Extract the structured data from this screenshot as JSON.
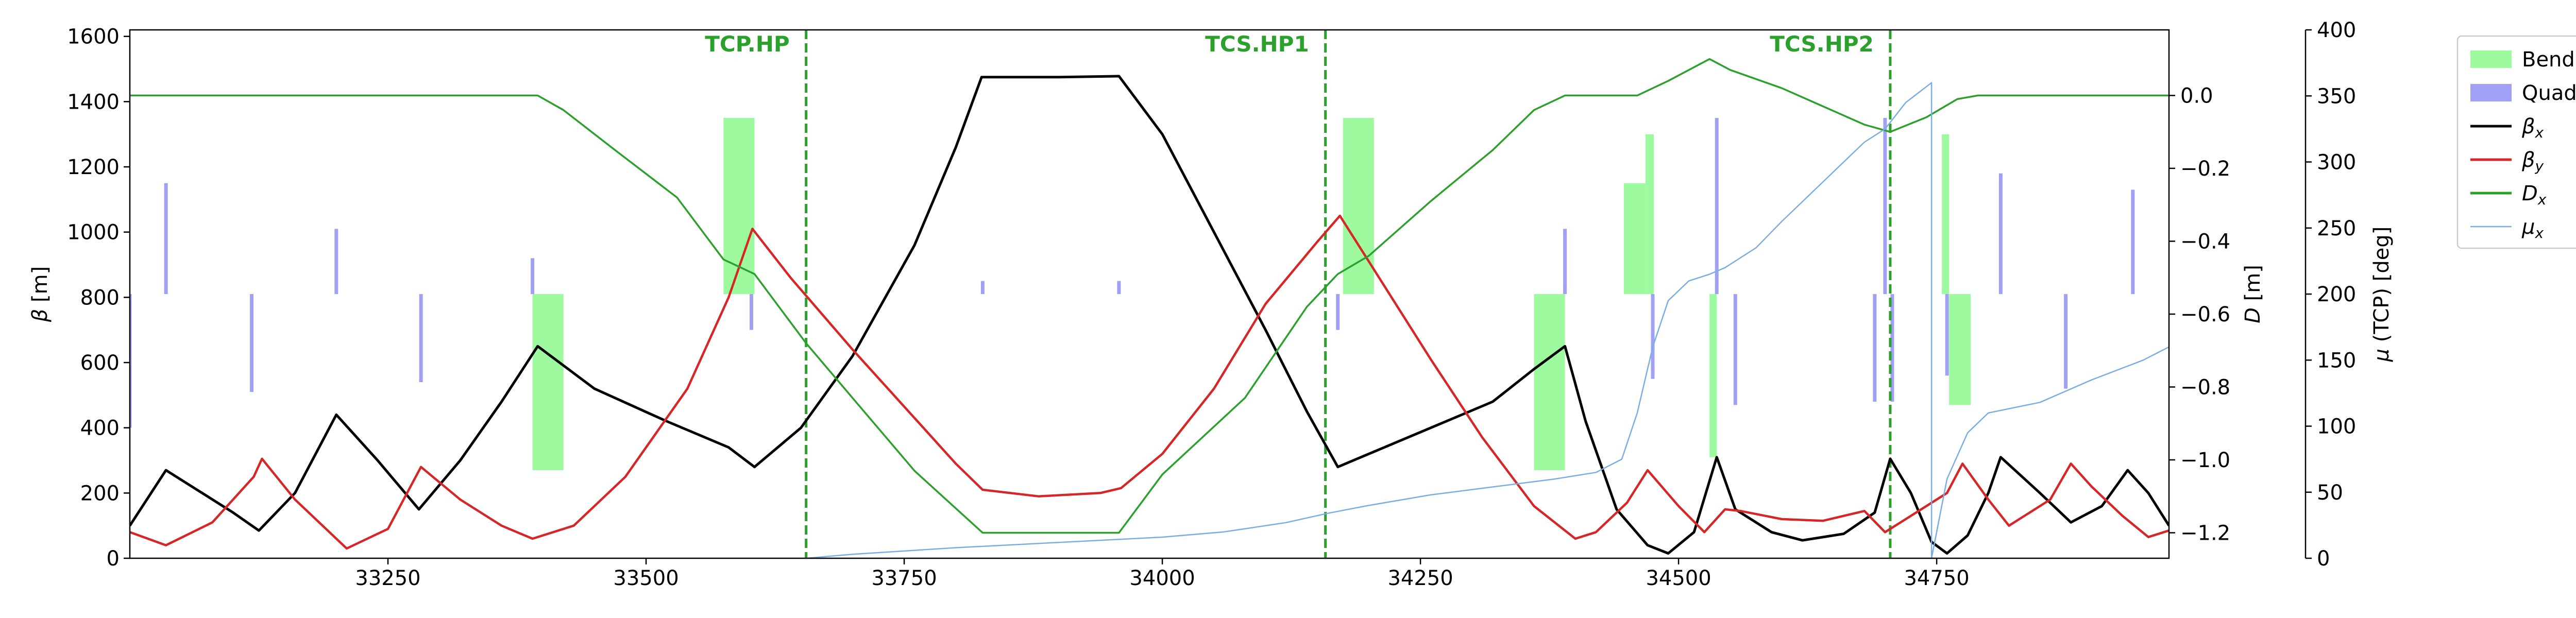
{
  "chart_data": {
    "type": "line",
    "xlim": [
      33000,
      34975
    ],
    "x_ticks": [
      "33250",
      "33500",
      "33750",
      "34000",
      "34250",
      "34500",
      "34750"
    ],
    "x_tick_values": [
      33250,
      33500,
      33750,
      34000,
      34250,
      34500,
      34750
    ],
    "left_axis": {
      "label": "β [m]",
      "lim": [
        0,
        1620
      ],
      "ticks": [
        "0",
        "200",
        "400",
        "600",
        "800",
        "1000",
        "1200",
        "1400",
        "1600"
      ],
      "tick_values": [
        0,
        200,
        400,
        600,
        800,
        1000,
        1200,
        1400,
        1600
      ]
    },
    "right_axis_1": {
      "label": "D [m]",
      "lim": [
        -1.27,
        0.18
      ],
      "ticks": [
        "−1.2",
        "−1.0",
        "−0.8",
        "−0.6",
        "−0.4",
        "−0.2",
        "0.0"
      ],
      "tick_values": [
        -1.2,
        -1.0,
        -0.8,
        -0.6,
        -0.4,
        -0.2,
        0.0
      ]
    },
    "right_axis_2": {
      "label": "μ (TCP) [deg]",
      "lim": [
        0,
        400
      ],
      "ticks": [
        "0",
        "50",
        "100",
        "150",
        "200",
        "250",
        "300",
        "350",
        "400"
      ],
      "tick_values": [
        0,
        50,
        100,
        150,
        200,
        250,
        300,
        350,
        400
      ]
    },
    "colors": {
      "beta_x": "#000000",
      "beta_y": "#d62728",
      "D_x": "#2ca02c",
      "mu_x": "#7aaee0",
      "bend": "#9efa9e",
      "quad": "#a0a0f4",
      "marker": "#2ca02c"
    },
    "legend": {
      "placement": "outside-right",
      "entries": [
        {
          "label": "Bend h",
          "kind": "patch",
          "color_key": "bend"
        },
        {
          "label": "Quad",
          "kind": "patch",
          "color_key": "quad"
        },
        {
          "label": "β",
          "sub": "x",
          "kind": "line",
          "color_key": "beta_x"
        },
        {
          "label": "β",
          "sub": "y",
          "kind": "line",
          "color_key": "beta_y"
        },
        {
          "label": "D",
          "sub": "x",
          "kind": "line",
          "color_key": "D_x"
        },
        {
          "label": "μ",
          "sub": "x",
          "kind": "line",
          "color_key": "mu_x"
        }
      ]
    },
    "markers": [
      {
        "label": "TCP.HP",
        "x": 33655
      },
      {
        "label": "TCS.HP1",
        "x": 34158
      },
      {
        "label": "TCS.HP2",
        "x": 34705
      }
    ],
    "series": [
      {
        "key": "beta_x",
        "axis": "left",
        "points": [
          [
            33000,
            100
          ],
          [
            33035,
            270
          ],
          [
            33070,
            200
          ],
          [
            33100,
            140
          ],
          [
            33125,
            85
          ],
          [
            33160,
            200
          ],
          [
            33200,
            440
          ],
          [
            33240,
            300
          ],
          [
            33280,
            150
          ],
          [
            33320,
            300
          ],
          [
            33360,
            480
          ],
          [
            33395,
            650
          ],
          [
            33450,
            520
          ],
          [
            33520,
            420
          ],
          [
            33580,
            340
          ],
          [
            33605,
            280
          ],
          [
            33650,
            400
          ],
          [
            33700,
            620
          ],
          [
            33760,
            960
          ],
          [
            33800,
            1260
          ],
          [
            33825,
            1475
          ],
          [
            33900,
            1475
          ],
          [
            33958,
            1478
          ],
          [
            34000,
            1300
          ],
          [
            34050,
            1000
          ],
          [
            34100,
            700
          ],
          [
            34140,
            450
          ],
          [
            34170,
            280
          ],
          [
            34200,
            320
          ],
          [
            34260,
            400
          ],
          [
            34320,
            480
          ],
          [
            34360,
            580
          ],
          [
            34390,
            650
          ],
          [
            34410,
            420
          ],
          [
            34440,
            150
          ],
          [
            34470,
            40
          ],
          [
            34490,
            15
          ],
          [
            34515,
            80
          ],
          [
            34537,
            310
          ],
          [
            34555,
            150
          ],
          [
            34590,
            80
          ],
          [
            34620,
            55
          ],
          [
            34660,
            75
          ],
          [
            34690,
            140
          ],
          [
            34705,
            305
          ],
          [
            34725,
            200
          ],
          [
            34745,
            50
          ],
          [
            34760,
            15
          ],
          [
            34780,
            70
          ],
          [
            34800,
            200
          ],
          [
            34812,
            310
          ],
          [
            34850,
            200
          ],
          [
            34880,
            110
          ],
          [
            34910,
            160
          ],
          [
            34935,
            270
          ],
          [
            34955,
            200
          ],
          [
            34975,
            100
          ]
        ]
      },
      {
        "key": "beta_y",
        "axis": "left",
        "points": [
          [
            33000,
            80
          ],
          [
            33035,
            40
          ],
          [
            33080,
            110
          ],
          [
            33120,
            250
          ],
          [
            33128,
            305
          ],
          [
            33160,
            180
          ],
          [
            33200,
            60
          ],
          [
            33210,
            30
          ],
          [
            33250,
            90
          ],
          [
            33282,
            280
          ],
          [
            33320,
            180
          ],
          [
            33360,
            100
          ],
          [
            33390,
            60
          ],
          [
            33430,
            100
          ],
          [
            33480,
            250
          ],
          [
            33540,
            520
          ],
          [
            33580,
            800
          ],
          [
            33603,
            1010
          ],
          [
            33640,
            860
          ],
          [
            33700,
            640
          ],
          [
            33760,
            430
          ],
          [
            33800,
            290
          ],
          [
            33826,
            210
          ],
          [
            33880,
            190
          ],
          [
            33940,
            200
          ],
          [
            33960,
            215
          ],
          [
            34000,
            320
          ],
          [
            34050,
            520
          ],
          [
            34100,
            780
          ],
          [
            34150,
            970
          ],
          [
            34172,
            1050
          ],
          [
            34210,
            860
          ],
          [
            34260,
            610
          ],
          [
            34310,
            370
          ],
          [
            34360,
            160
          ],
          [
            34400,
            60
          ],
          [
            34420,
            80
          ],
          [
            34450,
            170
          ],
          [
            34470,
            270
          ],
          [
            34500,
            160
          ],
          [
            34525,
            80
          ],
          [
            34545,
            150
          ],
          [
            34560,
            145
          ],
          [
            34600,
            120
          ],
          [
            34640,
            115
          ],
          [
            34680,
            145
          ],
          [
            34700,
            80
          ],
          [
            34725,
            130
          ],
          [
            34760,
            200
          ],
          [
            34775,
            290
          ],
          [
            34800,
            180
          ],
          [
            34820,
            100
          ],
          [
            34860,
            180
          ],
          [
            34880,
            290
          ],
          [
            34900,
            220
          ],
          [
            34930,
            130
          ],
          [
            34955,
            65
          ],
          [
            34975,
            85
          ]
        ]
      },
      {
        "key": "D_x",
        "axis": "right1",
        "points": [
          [
            33000,
            0.0
          ],
          [
            33100,
            0.0
          ],
          [
            33200,
            0.0
          ],
          [
            33300,
            0.0
          ],
          [
            33395,
            0.0
          ],
          [
            33420,
            -0.04
          ],
          [
            33470,
            -0.15
          ],
          [
            33530,
            -0.28
          ],
          [
            33575,
            -0.45
          ],
          [
            33605,
            -0.49
          ],
          [
            33655,
            -0.68
          ],
          [
            33700,
            -0.83
          ],
          [
            33760,
            -1.03
          ],
          [
            33826,
            -1.2
          ],
          [
            33958,
            -1.2
          ],
          [
            34000,
            -1.04
          ],
          [
            34080,
            -0.83
          ],
          [
            34140,
            -0.58
          ],
          [
            34170,
            -0.49
          ],
          [
            34200,
            -0.44
          ],
          [
            34260,
            -0.29
          ],
          [
            34320,
            -0.15
          ],
          [
            34360,
            -0.04
          ],
          [
            34390,
            0.0
          ],
          [
            34460,
            0.0
          ],
          [
            34490,
            0.04
          ],
          [
            34530,
            0.1
          ],
          [
            34550,
            0.07
          ],
          [
            34600,
            0.02
          ],
          [
            34680,
            -0.08
          ],
          [
            34705,
            -0.1
          ],
          [
            34740,
            -0.06
          ],
          [
            34770,
            -0.01
          ],
          [
            34790,
            0.0
          ],
          [
            34975,
            0.0
          ]
        ]
      },
      {
        "key": "mu_x",
        "axis": "right2",
        "points": [
          [
            33655,
            0
          ],
          [
            33700,
            3
          ],
          [
            33800,
            8
          ],
          [
            33900,
            12
          ],
          [
            34000,
            16
          ],
          [
            34060,
            20
          ],
          [
            34120,
            27
          ],
          [
            34160,
            34
          ],
          [
            34200,
            40
          ],
          [
            34260,
            48
          ],
          [
            34320,
            54
          ],
          [
            34380,
            60
          ],
          [
            34420,
            65
          ],
          [
            34445,
            75
          ],
          [
            34460,
            110
          ],
          [
            34475,
            160
          ],
          [
            34490,
            195
          ],
          [
            34510,
            210
          ],
          [
            34530,
            215
          ],
          [
            34545,
            220
          ],
          [
            34575,
            235
          ],
          [
            34600,
            255
          ],
          [
            34640,
            285
          ],
          [
            34680,
            315
          ],
          [
            34700,
            325
          ],
          [
            34720,
            345
          ],
          [
            34745,
            360
          ],
          [
            34745,
            0
          ],
          [
            34760,
            60
          ],
          [
            34780,
            95
          ],
          [
            34800,
            110
          ],
          [
            34850,
            118
          ],
          [
            34900,
            135
          ],
          [
            34950,
            150
          ],
          [
            34975,
            160
          ]
        ]
      }
    ],
    "bend_h": [
      {
        "x0": 33390,
        "x1": 33420,
        "y0": 270,
        "y1": 810
      },
      {
        "x0": 33575,
        "x1": 33605,
        "y0": 810,
        "y1": 1350
      },
      {
        "x0": 34175,
        "x1": 34205,
        "y0": 810,
        "y1": 1350
      },
      {
        "x0": 34360,
        "x1": 34390,
        "y0": 270,
        "y1": 810
      },
      {
        "x0": 34447,
        "x1": 34468,
        "y0": 810,
        "y1": 1150
      },
      {
        "x0": 34468,
        "x1": 34476,
        "y0": 810,
        "y1": 1300
      },
      {
        "x0": 34530,
        "x1": 34537,
        "y0": 310,
        "y1": 810
      },
      {
        "x0": 34755,
        "x1": 34762,
        "y0": 810,
        "y1": 1300
      },
      {
        "x0": 34762,
        "x1": 34783,
        "y0": 470,
        "y1": 810
      }
    ],
    "quads": [
      {
        "x": 33000,
        "y0": 400,
        "y1": 810
      },
      {
        "x": 33035,
        "y0": 810,
        "y1": 1150
      },
      {
        "x": 33118,
        "y0": 510,
        "y1": 810
      },
      {
        "x": 33200,
        "y0": 810,
        "y1": 1010
      },
      {
        "x": 33282,
        "y0": 540,
        "y1": 810
      },
      {
        "x": 33390,
        "y0": 810,
        "y1": 920
      },
      {
        "x": 33602,
        "y0": 700,
        "y1": 810
      },
      {
        "x": 33826,
        "y0": 810,
        "y1": 850
      },
      {
        "x": 33958,
        "y0": 810,
        "y1": 850
      },
      {
        "x": 34170,
        "y0": 700,
        "y1": 810
      },
      {
        "x": 34390,
        "y0": 810,
        "y1": 1010
      },
      {
        "x": 34475,
        "y0": 550,
        "y1": 810
      },
      {
        "x": 34537,
        "y0": 810,
        "y1": 1350
      },
      {
        "x": 34555,
        "y0": 470,
        "y1": 810
      },
      {
        "x": 34690,
        "y0": 480,
        "y1": 810
      },
      {
        "x": 34700,
        "y0": 810,
        "y1": 1350
      },
      {
        "x": 34707,
        "y0": 480,
        "y1": 810
      },
      {
        "x": 34760,
        "y0": 560,
        "y1": 810
      },
      {
        "x": 34812,
        "y0": 810,
        "y1": 1180
      },
      {
        "x": 34875,
        "y0": 520,
        "y1": 810
      },
      {
        "x": 34940,
        "y0": 810,
        "y1": 1130
      }
    ]
  }
}
